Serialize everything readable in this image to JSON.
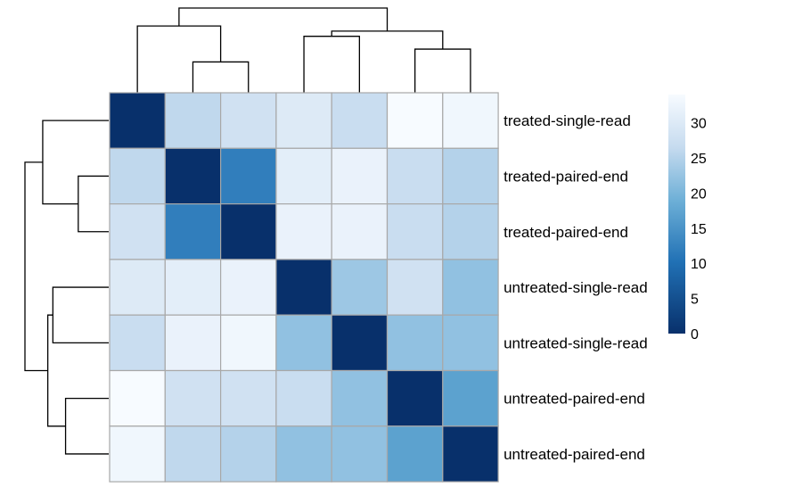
{
  "chart_data": {
    "type": "heatmap",
    "title": "",
    "xlabel": "",
    "ylabel": "",
    "row_labels": [
      "treated-single-read",
      "treated-paired-end",
      "treated-paired-end",
      "untreated-single-read",
      "untreated-single-read",
      "untreated-paired-end",
      "untreated-paired-end"
    ],
    "column_labels": [],
    "values": [
      [
        0,
        26,
        28,
        30,
        27,
        34,
        33
      ],
      [
        26,
        0,
        12,
        31,
        32,
        27,
        25
      ],
      [
        28,
        12,
        0,
        32,
        32,
        27,
        25
      ],
      [
        30,
        31,
        32,
        0,
        23,
        28,
        22
      ],
      [
        27,
        32,
        33,
        22,
        0,
        22,
        22
      ],
      [
        34,
        28,
        28,
        27,
        22,
        0,
        17
      ],
      [
        33,
        26,
        25,
        22,
        22,
        17,
        0
      ]
    ],
    "legend": {
      "placement": "right",
      "ticks": [
        "0",
        "5",
        "10",
        "15",
        "20",
        "25",
        "30"
      ],
      "min": 0,
      "max": 34
    },
    "colors": {
      "low": "#08306b",
      "mid1": "#2171b5",
      "mid2": "#6baed6",
      "mid3": "#c6dbef",
      "high": "#f7fbff",
      "cell_border": "#a8a8a8"
    },
    "dendrogram": {
      "order": [
        0,
        1,
        2,
        3,
        4,
        5,
        6
      ],
      "merges": [
        [
          1,
          2,
          12
        ],
        [
          5,
          6,
          17
        ],
        [
          3,
          4,
          22
        ],
        [
          8,
          9,
          24
        ],
        [
          0,
          7,
          26
        ],
        [
          10,
          11,
          33
        ]
      ]
    }
  }
}
